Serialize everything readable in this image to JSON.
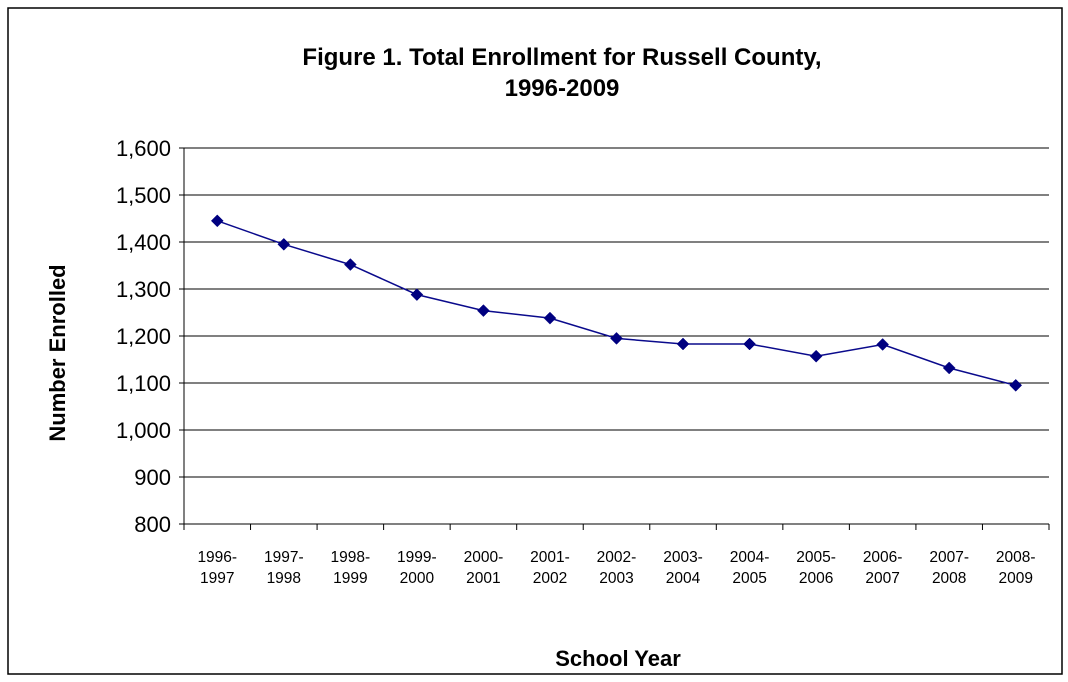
{
  "chart_data": {
    "type": "line",
    "title": "Figure 1. Total Enrollment for Russell County, 1996-2009",
    "title_lines": [
      "Figure 1. Total Enrollment for Russell County,",
      "1996-2009"
    ],
    "xlabel": "School Year",
    "ylabel": "Number Enrolled",
    "ylim": [
      800,
      1600
    ],
    "ytick_step": 100,
    "ytick_labels": [
      "1,600",
      "1,500",
      "1,400",
      "1,300",
      "1,200",
      "1,100",
      "1,000",
      "900",
      "800"
    ],
    "categories": [
      "1996-1997",
      "1997-1998",
      "1998-1999",
      "1999-2000",
      "2000-2001",
      "2001-2002",
      "2002-2003",
      "2003-2004",
      "2004-2005",
      "2005-2006",
      "2006-2007",
      "2007-2008",
      "2008-2009"
    ],
    "category_lines": [
      [
        "1996-",
        "1997"
      ],
      [
        "1997-",
        "1998"
      ],
      [
        "1998-",
        "1999"
      ],
      [
        "1999-",
        "2000"
      ],
      [
        "2000-",
        "2001"
      ],
      [
        "2001-",
        "2002"
      ],
      [
        "2002-",
        "2003"
      ],
      [
        "2003-",
        "2004"
      ],
      [
        "2004-",
        "2005"
      ],
      [
        "2005-",
        "2006"
      ],
      [
        "2006-",
        "2007"
      ],
      [
        "2007-",
        "2008"
      ],
      [
        "2008-",
        "2009"
      ]
    ],
    "series": [
      {
        "values": [
          1445,
          1395,
          1352,
          1288,
          1254,
          1238,
          1195,
          1183,
          1183,
          1157,
          1182,
          1132,
          1095
        ]
      }
    ],
    "grid": true,
    "legend": "none",
    "series_color": "#000080",
    "line_color": "#0a0a8c"
  }
}
